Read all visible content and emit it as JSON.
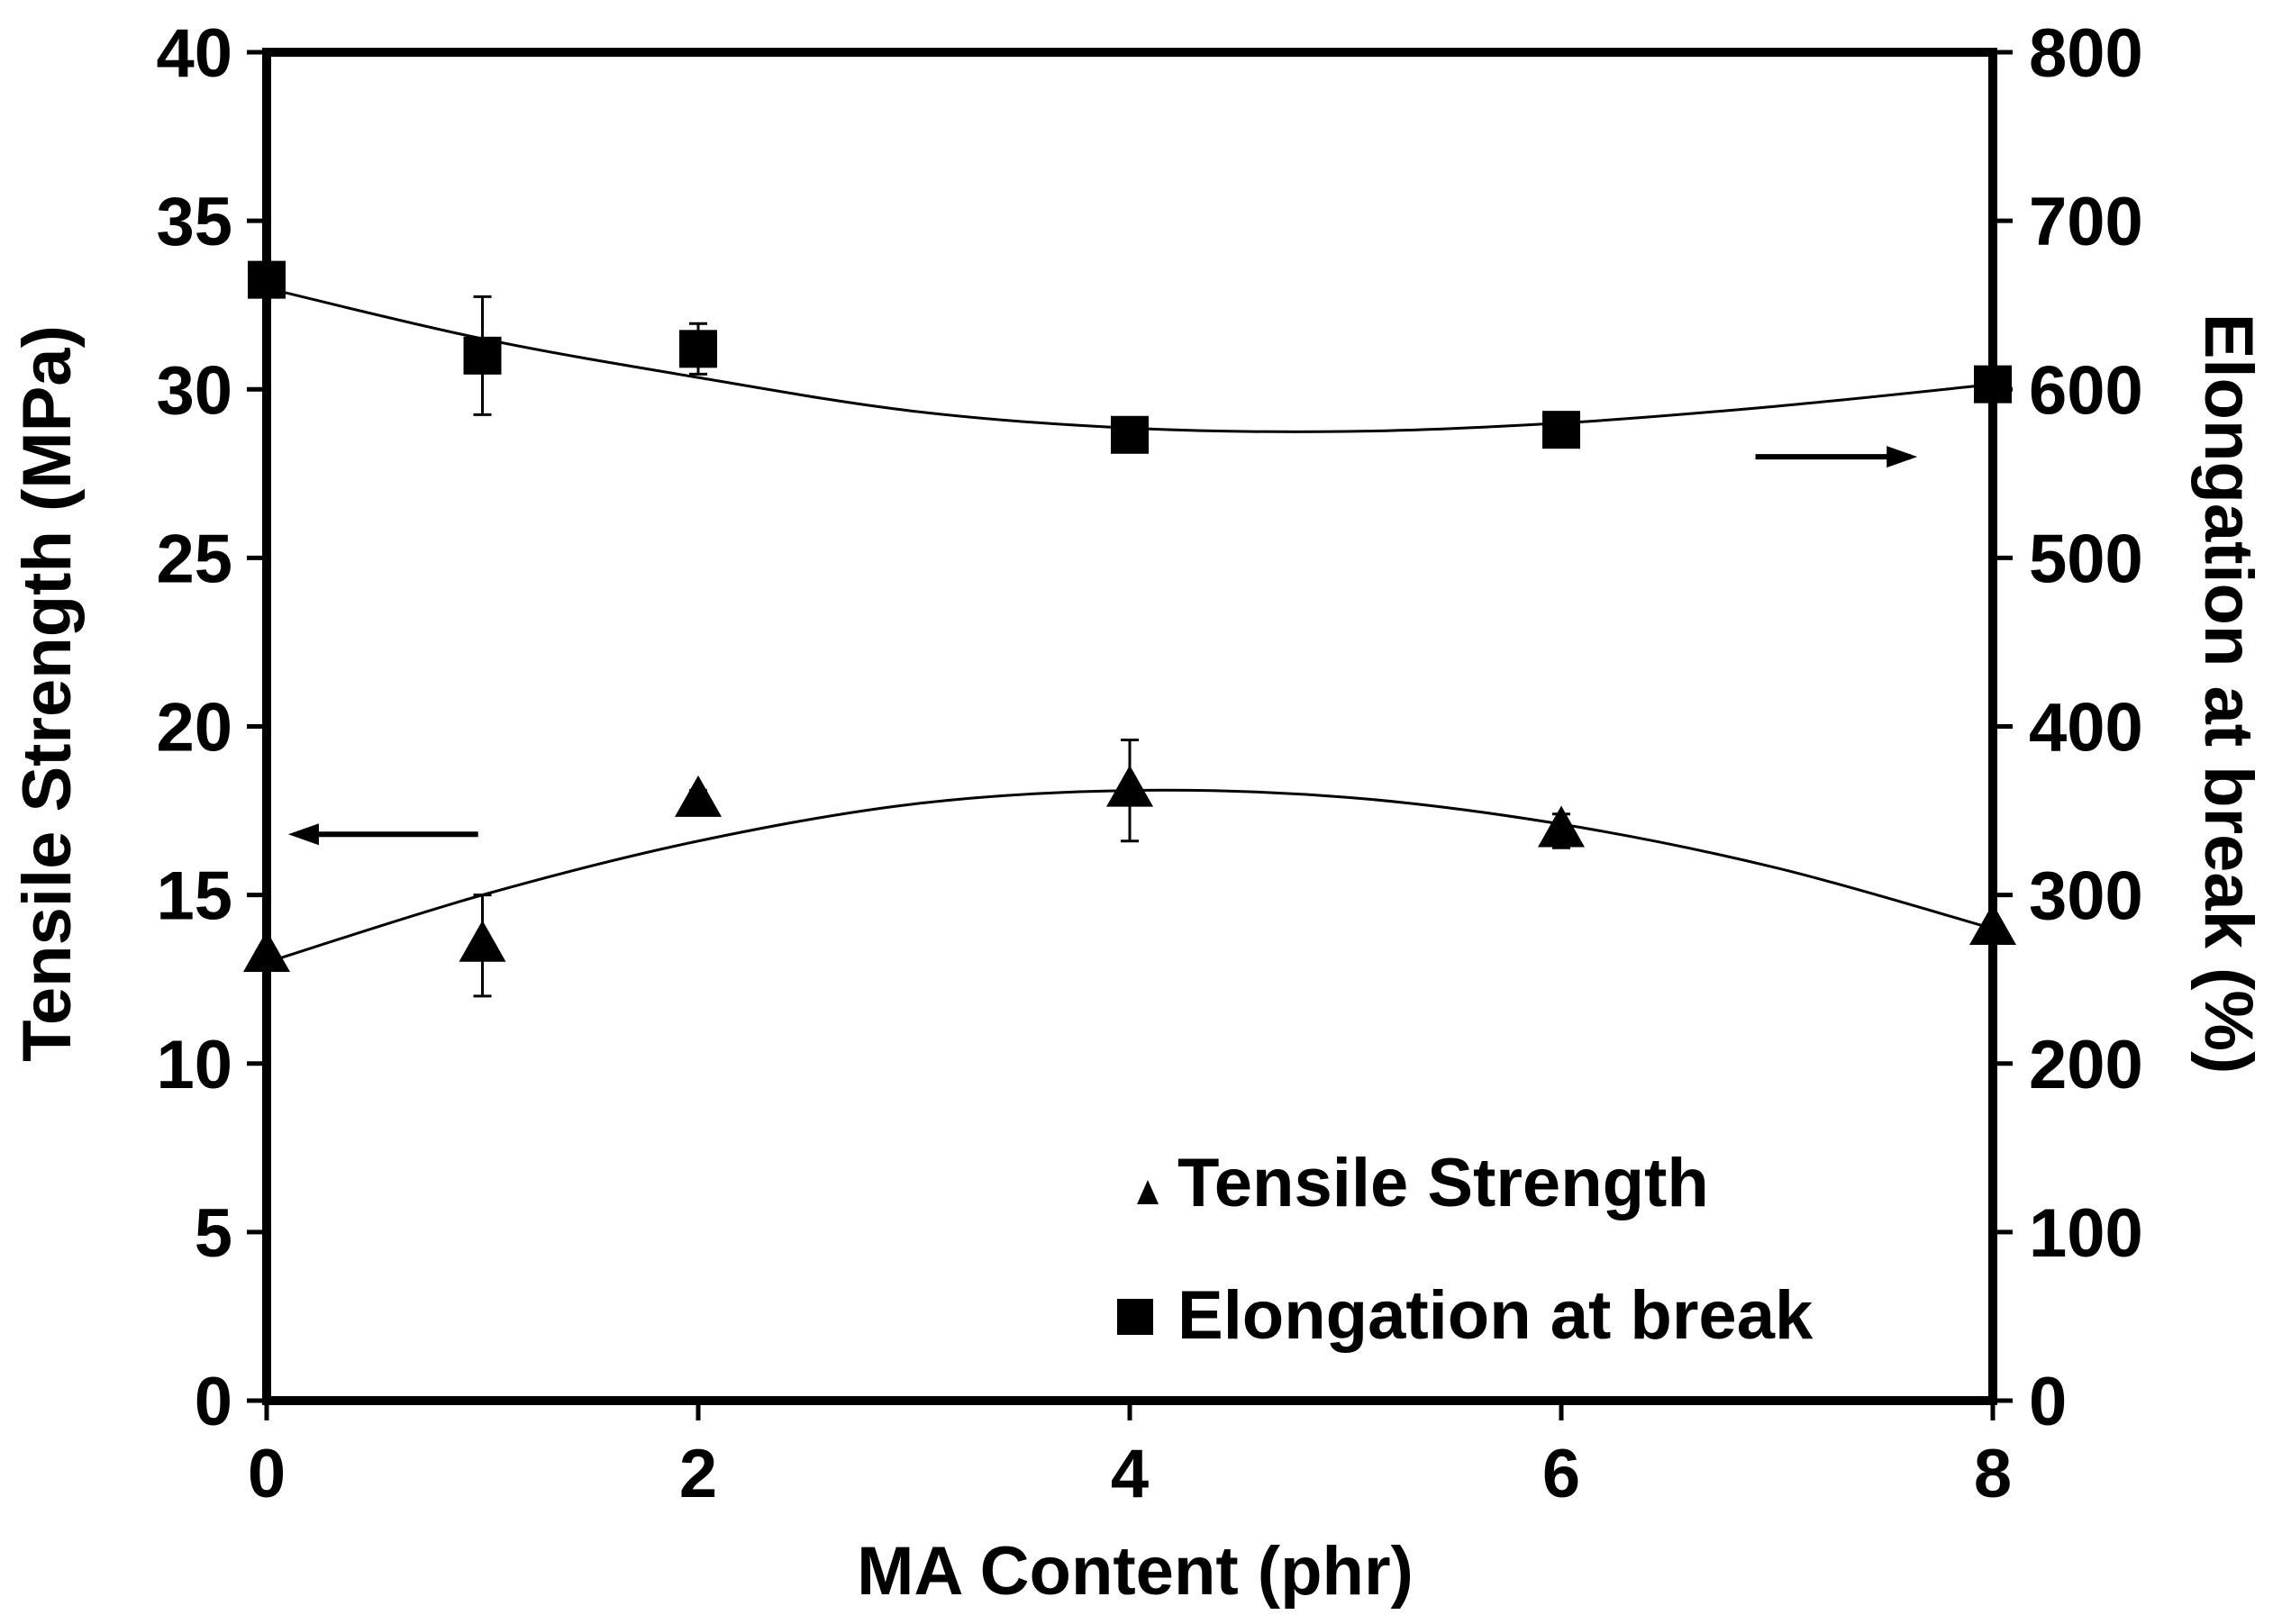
{
  "chart_data": {
    "type": "scatter",
    "title": "",
    "xlabel": "MA Content (phr)",
    "ylabel": "Tensile Strength (MPa)",
    "y2label": "Elongation at break (%)",
    "xlim": [
      0,
      8
    ],
    "ylim": [
      0,
      40
    ],
    "y2lim": [
      0,
      800
    ],
    "xticks": [
      0,
      2,
      4,
      6,
      8
    ],
    "yticks": [
      0,
      5,
      10,
      15,
      20,
      25,
      30,
      35,
      40
    ],
    "y2ticks": [
      0,
      100,
      200,
      300,
      400,
      500,
      600,
      700,
      800
    ],
    "grid": false,
    "legend_position": "bottom-right",
    "series": [
      {
        "name": "Tensile Strength",
        "axis": "left",
        "marker": "triangle",
        "x": [
          0,
          1,
          2,
          4,
          6,
          8
        ],
        "values": [
          13.2,
          13.5,
          17.8,
          18.1,
          16.9,
          14.0
        ],
        "errors": [
          0,
          1.5,
          0.3,
          1.5,
          0.5,
          0
        ],
        "trendline": "polynomial",
        "trendline_points": [
          [
            0,
            13.0
          ],
          [
            1,
            15.0
          ],
          [
            2,
            16.6
          ],
          [
            3,
            17.7
          ],
          [
            4,
            18.1
          ],
          [
            5,
            17.9
          ],
          [
            6,
            17.1
          ],
          [
            7,
            15.8
          ],
          [
            8,
            14.0
          ]
        ]
      },
      {
        "name": "Elongation at break",
        "axis": "right",
        "marker": "square",
        "x": [
          0,
          1,
          2,
          4,
          6,
          8
        ],
        "values": [
          665,
          620,
          624,
          573,
          576,
          603
        ],
        "errors": [
          0,
          35,
          15,
          0,
          0,
          0
        ],
        "trendline": "polynomial",
        "trendline_points": [
          [
            0,
            660
          ],
          [
            1,
            630
          ],
          [
            2,
            607
          ],
          [
            3,
            587
          ],
          [
            4,
            577
          ],
          [
            5,
            575
          ],
          [
            6,
            580
          ],
          [
            7,
            590
          ],
          [
            8,
            603
          ]
        ]
      }
    ],
    "annotations": [
      {
        "type": "arrow",
        "direction": "left",
        "meaning": "points to left axis for Tensile Strength"
      },
      {
        "type": "arrow",
        "direction": "right",
        "meaning": "points to right axis for Elongation at break"
      }
    ]
  }
}
